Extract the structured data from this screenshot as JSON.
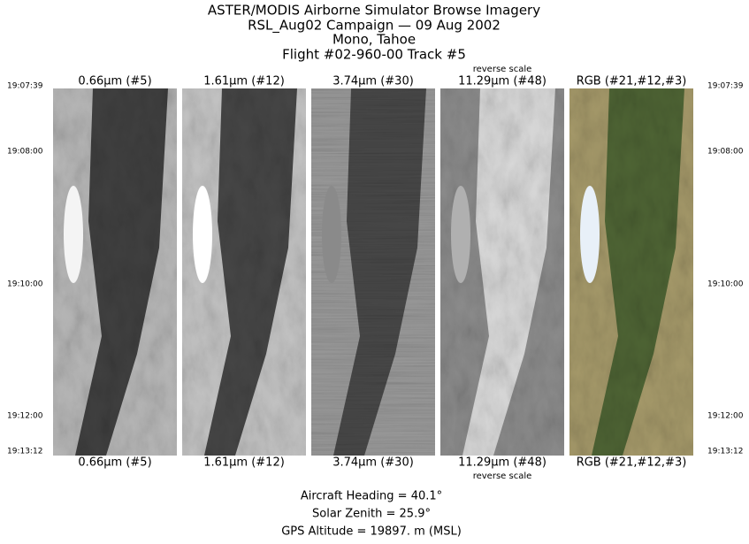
{
  "header": {
    "lines": [
      "ASTER/MODIS Airborne Simulator Browse Imagery",
      "RSL_Aug02 Campaign — 09 Aug 2002",
      "Mono, Tahoe",
      "Flight #02-960-00 Track #5"
    ]
  },
  "panels": [
    {
      "top_label": "0.66µm (#5)",
      "bottom_label": "0.66µm (#5)"
    },
    {
      "top_label": "1.61µm (#12)",
      "bottom_label": "1.61µm (#12)"
    },
    {
      "top_label": "3.74µm (#30)",
      "bottom_label": "3.74µm (#30)"
    },
    {
      "top_label": "11.29µm (#48)",
      "bottom_label": "11.29µm (#48)",
      "note": "reverse scale"
    },
    {
      "top_label": "RGB (#21,#12,#3)",
      "bottom_label": "RGB (#21,#12,#3)"
    }
  ],
  "time_labels": [
    "19:07:39",
    "19:08:00",
    "19:10:00",
    "19:12:00",
    "19:13:12"
  ],
  "footer": {
    "lines": [
      "Aircraft Heading =   40.1°",
      "Solar Zenith =   25.9°",
      "GPS Altitude =  19897. m (MSL)"
    ]
  }
}
